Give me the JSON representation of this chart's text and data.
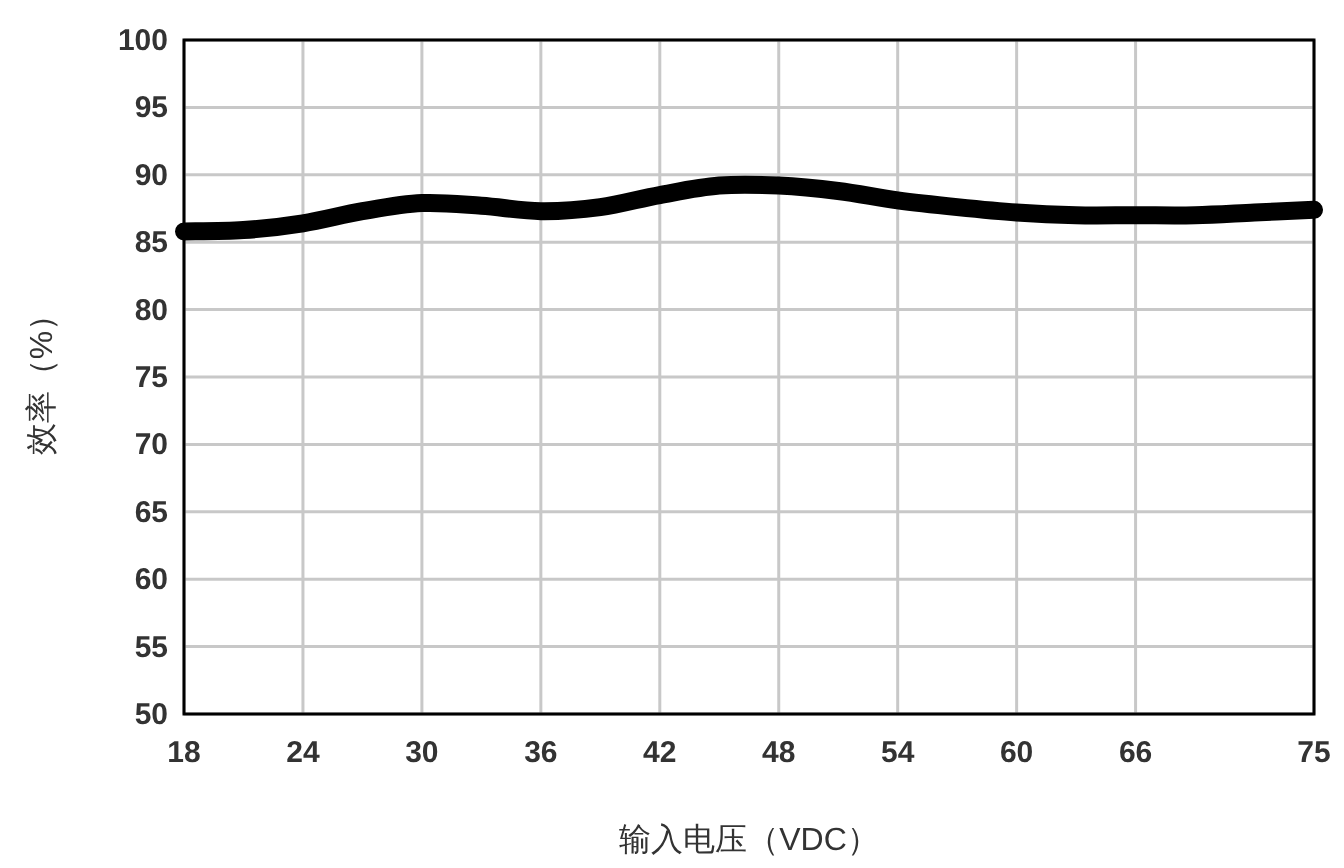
{
  "chart_data": {
    "type": "line",
    "xlabel": "输入电压（VDC）",
    "ylabel": "效率（%）",
    "xlim": [
      18,
      75
    ],
    "xticks": [
      18,
      24,
      30,
      36,
      42,
      48,
      54,
      60,
      66,
      75
    ],
    "ylim": [
      50,
      100
    ],
    "yticks": [
      50,
      55,
      60,
      65,
      70,
      75,
      80,
      85,
      90,
      95,
      100
    ],
    "grid": true,
    "series": [
      {
        "color": "#000000",
        "x": [
          18,
          21,
          24,
          27,
          30,
          33,
          36,
          39,
          42,
          45,
          48,
          51,
          54,
          57,
          60,
          63,
          66,
          69,
          72,
          75
        ],
        "values": [
          85.8,
          85.9,
          86.4,
          87.3,
          87.9,
          87.7,
          87.3,
          87.6,
          88.5,
          89.2,
          89.2,
          88.8,
          88.1,
          87.6,
          87.2,
          87.0,
          87.0,
          87.0,
          87.2,
          87.4
        ]
      }
    ]
  }
}
